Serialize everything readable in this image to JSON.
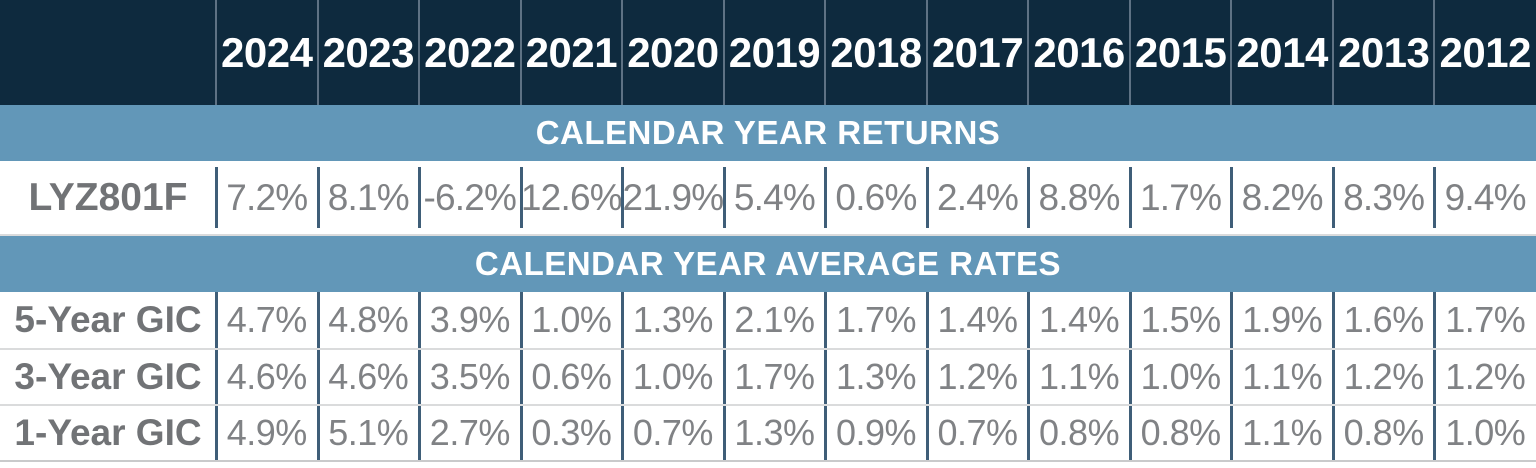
{
  "table": {
    "years": [
      "2024",
      "2023",
      "2022",
      "2021",
      "2020",
      "2019",
      "2018",
      "2017",
      "2016",
      "2015",
      "2014",
      "2013",
      "2012"
    ],
    "section_returns": {
      "title": "CALENDAR YEAR RETURNS"
    },
    "section_rates": {
      "title": "CALENDAR YEAR AVERAGE RATES"
    },
    "fund_row": {
      "label": "LYZ801F",
      "values": [
        "7.2%",
        "8.1%",
        "-6.2%",
        "12.6%",
        "21.9%",
        "5.4%",
        "0.6%",
        "2.4%",
        "8.8%",
        "1.7%",
        "8.2%",
        "8.3%",
        "9.4%"
      ]
    },
    "gic_rows": [
      {
        "label": "5-Year GIC",
        "values": [
          "4.7%",
          "4.8%",
          "3.9%",
          "1.0%",
          "1.3%",
          "2.1%",
          "1.7%",
          "1.4%",
          "1.4%",
          "1.5%",
          "1.9%",
          "1.6%",
          "1.7%"
        ]
      },
      {
        "label": "3-Year GIC",
        "values": [
          "4.6%",
          "4.6%",
          "3.5%",
          "0.6%",
          "1.0%",
          "1.7%",
          "1.3%",
          "1.2%",
          "1.1%",
          "1.0%",
          "1.1%",
          "1.2%",
          "1.2%"
        ]
      },
      {
        "label": "1-Year GIC",
        "values": [
          "4.9%",
          "5.1%",
          "2.7%",
          "0.3%",
          "0.7%",
          "1.3%",
          "0.9%",
          "0.7%",
          "0.8%",
          "0.8%",
          "1.1%",
          "0.8%",
          "1.0%"
        ]
      }
    ]
  },
  "colors": {
    "header_background": "#0E2A3E",
    "band_background": "#6297B8",
    "value_text": "#808285",
    "label_text": "#717376",
    "cell_separator": "#3F5E78",
    "header_separator": "#5E7284",
    "row_separator": "#DADBDC"
  }
}
